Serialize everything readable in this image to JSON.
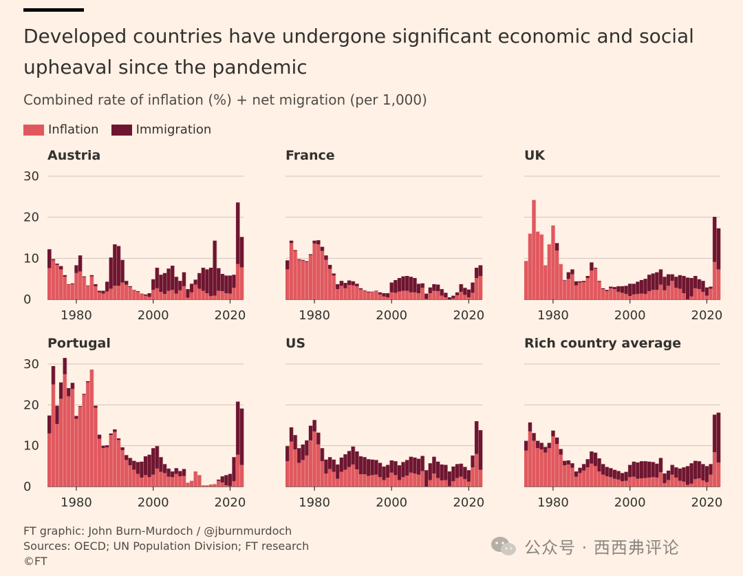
{
  "title": "Developed countries have undergone significant economic and social upheaval since the pandemic",
  "subtitle": "Combined rate of inflation (%) + net migration (per 1,000)",
  "colors": {
    "inflation": "#e0585e",
    "immigration": "#6e1530",
    "grid": "#cdc5bd",
    "background": "#fff1e5"
  },
  "legend": [
    {
      "label": "Inflation",
      "color": "#e0585e"
    },
    {
      "label": "Immigration",
      "color": "#6e1530"
    }
  ],
  "source": {
    "line1": "FT graphic: John Burn-Murdoch / @jburnmurdoch",
    "line2": "Sources: OECD; UN Population Division; FT research",
    "line3": "©FT"
  },
  "watermark": {
    "icon": "wechat-icon",
    "text": "公众号 · 西西弗评论"
  },
  "chart_data": [
    {
      "type": "bar",
      "stacked": true,
      "title": "Austria",
      "x_start": 1973,
      "xticks": [
        1980,
        2000,
        2020
      ],
      "yticks": [
        0,
        10,
        20,
        30
      ],
      "ylim": [
        0,
        30
      ],
      "show_yticks": true,
      "series": [
        {
          "name": "Inflation",
          "values": [
            7.6,
            9.5,
            8.4,
            7.3,
            5.5,
            3.6,
            3.7,
            6.4,
            6.8,
            5.4,
            3.3,
            5.6,
            3.2,
            1.7,
            1.4,
            1.9,
            2.6,
            3.3,
            3.3,
            4.1,
            3.6,
            3.0,
            2.2,
            1.8,
            1.3,
            0.9,
            0.6,
            2.3,
            2.7,
            1.8,
            1.3,
            2.1,
            2.3,
            1.4,
            2.2,
            3.2,
            0.4,
            1.7,
            3.6,
            2.6,
            2.1,
            1.5,
            0.8,
            0.9,
            2.1,
            2.0,
            1.5,
            1.4,
            2.8,
            8.6,
            7.8
          ]
        },
        {
          "name": "Immigration",
          "values": [
            4.6,
            0.3,
            0.3,
            0.8,
            0.4,
            0.1,
            0.2,
            1.9,
            3.9,
            0.2,
            0.1,
            0.3,
            0.5,
            0.4,
            0.7,
            2.4,
            7.6,
            10.1,
            9.7,
            5.5,
            0.9,
            0.2,
            0.1,
            0.2,
            0.1,
            0.3,
            0.9,
            2.6,
            5.0,
            4.2,
            5.1,
            5.4,
            5.9,
            4.1,
            2.3,
            3.4,
            2.1,
            2.1,
            1.2,
            3.8,
            5.6,
            5.8,
            6.9,
            13.4,
            5.5,
            4.2,
            4.3,
            4.4,
            3.2,
            15.0,
            7.4
          ]
        }
      ]
    },
    {
      "type": "bar",
      "stacked": true,
      "title": "France",
      "x_start": 1973,
      "xticks": [
        1980,
        2000,
        2020
      ],
      "yticks": [
        0,
        10,
        20,
        30
      ],
      "ylim": [
        0,
        30
      ],
      "show_yticks": false,
      "series": [
        {
          "name": "Inflation",
          "values": [
            7.3,
            13.7,
            11.8,
            9.6,
            9.4,
            9.1,
            10.8,
            13.6,
            13.4,
            11.8,
            9.6,
            7.4,
            5.8,
            2.5,
            3.3,
            2.7,
            3.5,
            3.4,
            3.2,
            2.4,
            2.1,
            1.7,
            1.8,
            2.0,
            1.2,
            0.7,
            0.5,
            1.7,
            1.6,
            1.9,
            2.1,
            2.1,
            1.7,
            1.7,
            1.5,
            2.8,
            0.1,
            1.5,
            2.1,
            2.0,
            0.9,
            0.5,
            0.0,
            0.2,
            1.0,
            1.8,
            1.1,
            0.5,
            1.6,
            5.2,
            5.7
          ]
        },
        {
          "name": "Immigration",
          "values": [
            2.2,
            0.6,
            0.2,
            0.2,
            0.2,
            0.2,
            0.2,
            0.7,
            1.0,
            1.0,
            1.1,
            1.0,
            0.5,
            1.2,
            1.2,
            1.3,
            1.1,
            1.0,
            0.6,
            0.3,
            0.1,
            0.2,
            0.1,
            0.1,
            0.5,
            0.8,
            1.0,
            2.4,
            3.1,
            3.3,
            3.5,
            3.6,
            3.8,
            3.5,
            2.3,
            1.1,
            1.3,
            1.4,
            1.6,
            1.6,
            1.6,
            1.1,
            0.5,
            0.7,
            0.7,
            1.9,
            1.7,
            1.9,
            2.5,
            2.5,
            2.6
          ]
        }
      ]
    },
    {
      "type": "bar",
      "stacked": true,
      "title": "UK",
      "x_start": 1973,
      "xticks": [
        1980,
        2000,
        2020
      ],
      "yticks": [
        0,
        10,
        20,
        30
      ],
      "ylim": [
        0,
        30
      ],
      "show_yticks": false,
      "series": [
        {
          "name": "Inflation",
          "values": [
            9.2,
            16.0,
            24.2,
            16.5,
            15.8,
            8.3,
            13.4,
            18.0,
            11.9,
            8.6,
            4.6,
            5.0,
            6.1,
            3.4,
            4.1,
            4.2,
            5.2,
            7.0,
            7.5,
            4.3,
            2.5,
            2.0,
            2.7,
            2.5,
            1.8,
            1.6,
            1.3,
            0.8,
            1.2,
            1.3,
            1.4,
            1.3,
            2.0,
            2.3,
            2.3,
            3.6,
            2.2,
            3.3,
            4.5,
            2.8,
            2.6,
            1.5,
            0.0,
            0.7,
            2.7,
            2.5,
            1.8,
            0.9,
            2.6,
            9.1,
            7.3
          ]
        },
        {
          "name": "Immigration",
          "values": [
            0.1,
            0.0,
            0.0,
            0.0,
            0.0,
            0.0,
            0.0,
            0.0,
            1.8,
            0.0,
            0.1,
            1.6,
            1.2,
            1.0,
            0.3,
            0.3,
            0.5,
            2.0,
            0.2,
            0.2,
            0.2,
            0.3,
            0.4,
            0.5,
            1.4,
            1.6,
            2.0,
            3.0,
            2.6,
            3.0,
            3.3,
            3.7,
            4.0,
            4.0,
            4.3,
            3.7,
            3.3,
            2.8,
            1.6,
            2.7,
            3.3,
            4.2,
            5.3,
            4.5,
            3.0,
            2.4,
            2.7,
            2.0,
            0.5,
            11.0,
            10.0
          ]
        }
      ]
    },
    {
      "type": "bar",
      "stacked": true,
      "title": "Portugal",
      "x_start": 1973,
      "xticks": [
        1980,
        2000,
        2020
      ],
      "yticks": [
        0,
        10,
        20,
        30
      ],
      "ylim": [
        0,
        30
      ],
      "show_yticks": true,
      "series": [
        {
          "name": "Inflation",
          "values": [
            13.0,
            25.0,
            15.3,
            21.5,
            27.5,
            22.1,
            23.9,
            16.6,
            19.5,
            22.5,
            25.5,
            28.5,
            19.3,
            11.7,
            9.4,
            9.6,
            12.6,
            13.4,
            11.4,
            8.9,
            6.5,
            5.2,
            4.1,
            3.1,
            2.2,
            2.8,
            2.3,
            2.9,
            4.4,
            3.6,
            3.3,
            2.4,
            2.3,
            3.1,
            2.5,
            2.6,
            0.8,
            1.4,
            3.7,
            2.8,
            0.3,
            0.3,
            0.5,
            0.6,
            1.4,
            1.0,
            0.3,
            0.1,
            1.3,
            7.8,
            5.3
          ]
        },
        {
          "name": "Immigration",
          "values": [
            4.4,
            4.5,
            4.5,
            4.0,
            4.0,
            2.0,
            1.5,
            0.7,
            0.2,
            0.2,
            0.3,
            0.1,
            0.5,
            1.0,
            0.6,
            0.5,
            0.4,
            0.6,
            0.4,
            0.7,
            1.2,
            1.8,
            2.2,
            2.9,
            3.9,
            4.6,
            5.5,
            6.5,
            5.5,
            3.6,
            2.2,
            2.0,
            1.4,
            1.4,
            1.3,
            1.7,
            0.1,
            0.0,
            0.0,
            0.0,
            0.0,
            0.0,
            0.0,
            0.0,
            0.3,
            1.5,
            2.5,
            3.0,
            5.9,
            13.0,
            13.8
          ]
        }
      ]
    },
    {
      "type": "bar",
      "stacked": true,
      "title": "US",
      "x_start": 1973,
      "xticks": [
        1980,
        2000,
        2020
      ],
      "yticks": [
        0,
        10,
        20,
        30
      ],
      "ylim": [
        0,
        30
      ],
      "show_yticks": false,
      "series": [
        {
          "name": "Inflation",
          "values": [
            6.2,
            11.0,
            9.1,
            5.8,
            6.5,
            7.6,
            11.3,
            13.5,
            10.3,
            6.2,
            3.2,
            4.3,
            3.6,
            1.9,
            3.6,
            4.1,
            4.8,
            5.4,
            4.2,
            3.0,
            3.0,
            2.6,
            2.8,
            2.9,
            2.3,
            1.6,
            2.2,
            3.4,
            2.8,
            1.6,
            2.3,
            2.7,
            3.4,
            3.2,
            2.9,
            3.8,
            0.0,
            1.6,
            3.2,
            2.1,
            1.5,
            1.6,
            0.1,
            1.3,
            2.1,
            2.4,
            1.8,
            1.2,
            4.7,
            8.0,
            4.1
          ]
        },
        {
          "name": "Immigration",
          "values": [
            3.7,
            3.5,
            3.5,
            3.6,
            3.8,
            3.7,
            3.6,
            2.8,
            2.9,
            3.2,
            3.4,
            2.9,
            3.0,
            3.5,
            3.5,
            3.8,
            3.9,
            4.4,
            4.4,
            4.4,
            4.2,
            4.1,
            3.8,
            3.6,
            3.5,
            3.3,
            3.1,
            3.0,
            3.4,
            3.6,
            3.7,
            3.8,
            3.9,
            3.9,
            3.9,
            3.7,
            4.0,
            4.1,
            4.1,
            4.0,
            3.9,
            3.7,
            3.6,
            3.6,
            3.4,
            3.2,
            3.0,
            2.8,
            2.9,
            8.0,
            9.7
          ]
        }
      ]
    },
    {
      "type": "bar",
      "stacked": true,
      "title": "Rich country average",
      "x_start": 1973,
      "xticks": [
        1980,
        2000,
        2020
      ],
      "yticks": [
        0,
        10,
        20,
        30
      ],
      "ylim": [
        0,
        30
      ],
      "show_yticks": false,
      "series": [
        {
          "name": "Inflation",
          "values": [
            8.8,
            13.5,
            11.2,
            9.4,
            9.1,
            8.3,
            9.4,
            12.3,
            10.4,
            7.8,
            5.2,
            5.4,
            4.6,
            2.4,
            3.3,
            3.9,
            4.7,
            5.6,
            5.0,
            3.7,
            2.9,
            2.5,
            2.3,
            1.9,
            1.7,
            1.3,
            1.4,
            2.3,
            2.4,
            1.9,
            2.0,
            2.1,
            2.2,
            2.3,
            2.2,
            3.5,
            0.8,
            1.6,
            2.9,
            2.2,
            1.4,
            1.2,
            0.4,
            0.7,
            1.8,
            2.0,
            1.5,
            1.1,
            2.9,
            8.4,
            5.9
          ]
        },
        {
          "name": "Immigration",
          "values": [
            2.4,
            2.2,
            1.9,
            1.8,
            1.6,
            1.4,
            1.3,
            1.4,
            1.6,
            1.4,
            1.1,
            1.0,
            1.1,
            1.3,
            1.3,
            1.6,
            2.0,
            3.0,
            3.3,
            3.2,
            2.6,
            2.3,
            2.2,
            2.2,
            2.1,
            2.0,
            2.2,
            3.0,
            3.7,
            4.0,
            4.2,
            4.1,
            3.9,
            3.7,
            3.4,
            3.5,
            2.4,
            2.3,
            2.4,
            2.5,
            3.0,
            3.5,
            4.6,
            5.0,
            4.5,
            4.2,
            4.0,
            3.9,
            2.6,
            9.2,
            12.2
          ]
        }
      ]
    }
  ]
}
